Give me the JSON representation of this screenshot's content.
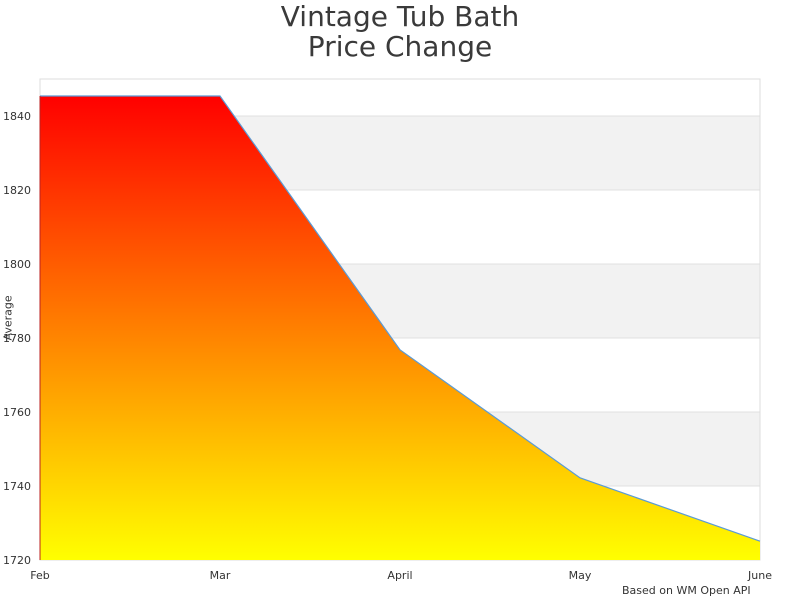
{
  "chart": {
    "title_line1": "Vintage Tub Bath",
    "title_line2": "Price Change",
    "ylabel": "Average",
    "credit": "Based on WM Open API"
  },
  "chart_data": {
    "type": "area",
    "title": "Vintage Tub Bath Price Change",
    "xlabel": "",
    "ylabel": "Average",
    "categories": [
      "Feb",
      "Mar",
      "April",
      "May",
      "June"
    ],
    "values": [
      1845.4,
      1845.4,
      1776.8,
      1742.2,
      1725.1
    ],
    "ylim": [
      1720,
      1850
    ],
    "yticks": [
      1720,
      1740,
      1760,
      1780,
      1800,
      1820,
      1840
    ],
    "grid": true,
    "fill_gradient": {
      "top": "#ff0000",
      "bottom": "#ffff00"
    },
    "line_color": "#5b9bd5",
    "annotation": "Based on WM Open API"
  }
}
